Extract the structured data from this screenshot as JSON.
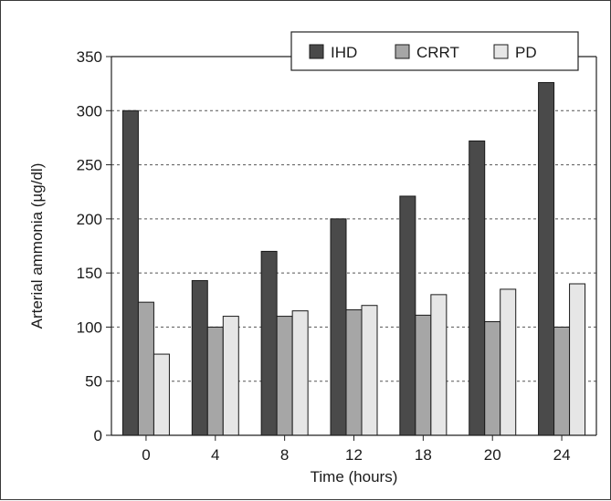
{
  "chart_data": {
    "type": "bar",
    "title": "",
    "xlabel": "Time (hours)",
    "ylabel": "Arterial ammonia (µg/dl)",
    "categories": [
      "0",
      "4",
      "8",
      "12",
      "18",
      "20",
      "24"
    ],
    "ylim": [
      0,
      350
    ],
    "yticks": [
      "0",
      "50",
      "100",
      "150",
      "200",
      "250",
      "300",
      "350"
    ],
    "grid": "horizontal dashed",
    "legend_position": "top-right",
    "series": [
      {
        "name": "IHD",
        "color": "#4a4a4a",
        "values": [
          300,
          143,
          170,
          200,
          221,
          272,
          326
        ]
      },
      {
        "name": "CRRT",
        "color": "#a6a6a6",
        "values": [
          123,
          100,
          110,
          116,
          111,
          105,
          100
        ]
      },
      {
        "name": "PD",
        "color": "#e6e6e6",
        "values": [
          75,
          110,
          115,
          120,
          130,
          135,
          140
        ]
      }
    ]
  }
}
